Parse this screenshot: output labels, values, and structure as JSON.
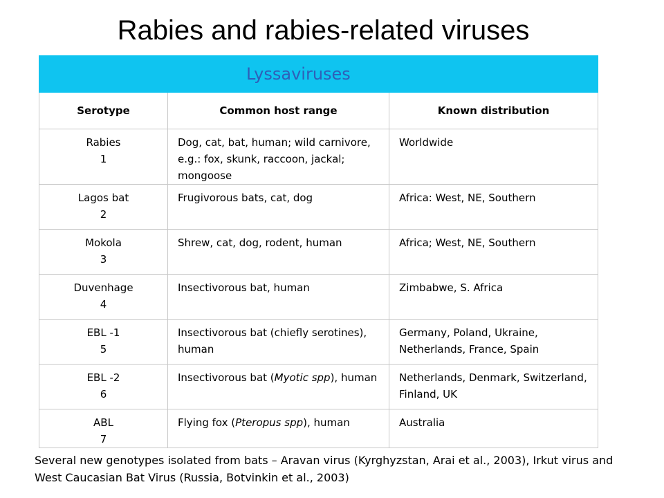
{
  "title": "Rabies and rabies-related viruses",
  "banner": "Lyssaviruses",
  "headers": [
    "Serotype",
    "Common host range",
    "Known distribution"
  ],
  "rows": [
    {
      "serotype": "Rabies",
      "num": "1",
      "host": "Dog, cat, bat, human; wild carnivore, e.g.: fox, skunk, raccoon, jackal; mongoose",
      "dist": "Worldwide"
    },
    {
      "serotype": "Lagos bat",
      "num": "2",
      "host": "Frugivorous bats, cat, dog",
      "dist": "Africa: West, NE, Southern"
    },
    {
      "serotype": "Mokola",
      "num": "3",
      "host": "Shrew, cat, dog, rodent, human",
      "dist": "Africa; West, NE, Southern"
    },
    {
      "serotype": "Duvenhage",
      "num": "4",
      "host": "Insectivorous bat, human",
      "dist": "Zimbabwe, S. Africa"
    },
    {
      "serotype": "EBL -1",
      "num": "5",
      "host": "Insectivorous bat (chiefly serotines), human",
      "dist": "Germany, Poland, Ukraine, Netherlands, France, Spain"
    },
    {
      "serotype": "EBL -2",
      "num": "6",
      "host_pre": "Insectivorous bat (",
      "host_it": "Myotic spp",
      "host_post": "), human",
      "dist": "Netherlands, Denmark, Switzerland, Finland, UK"
    },
    {
      "serotype": "ABL",
      "num": "7",
      "host_pre": "Flying fox (",
      "host_it": "Pteropus spp",
      "host_post": "), human",
      "dist": "Australia"
    }
  ],
  "note": "Several new genotypes isolated from bats – Aravan virus (Kyrghyzstan, Arai et al., 2003), Irkut virus and West Caucasian Bat Virus (Russia, Botvinkin et al., 2003)",
  "colors": {
    "banner": "#0fc4f0",
    "banner_text": "#2f5fb8",
    "grid": "#c8c8c8"
  }
}
